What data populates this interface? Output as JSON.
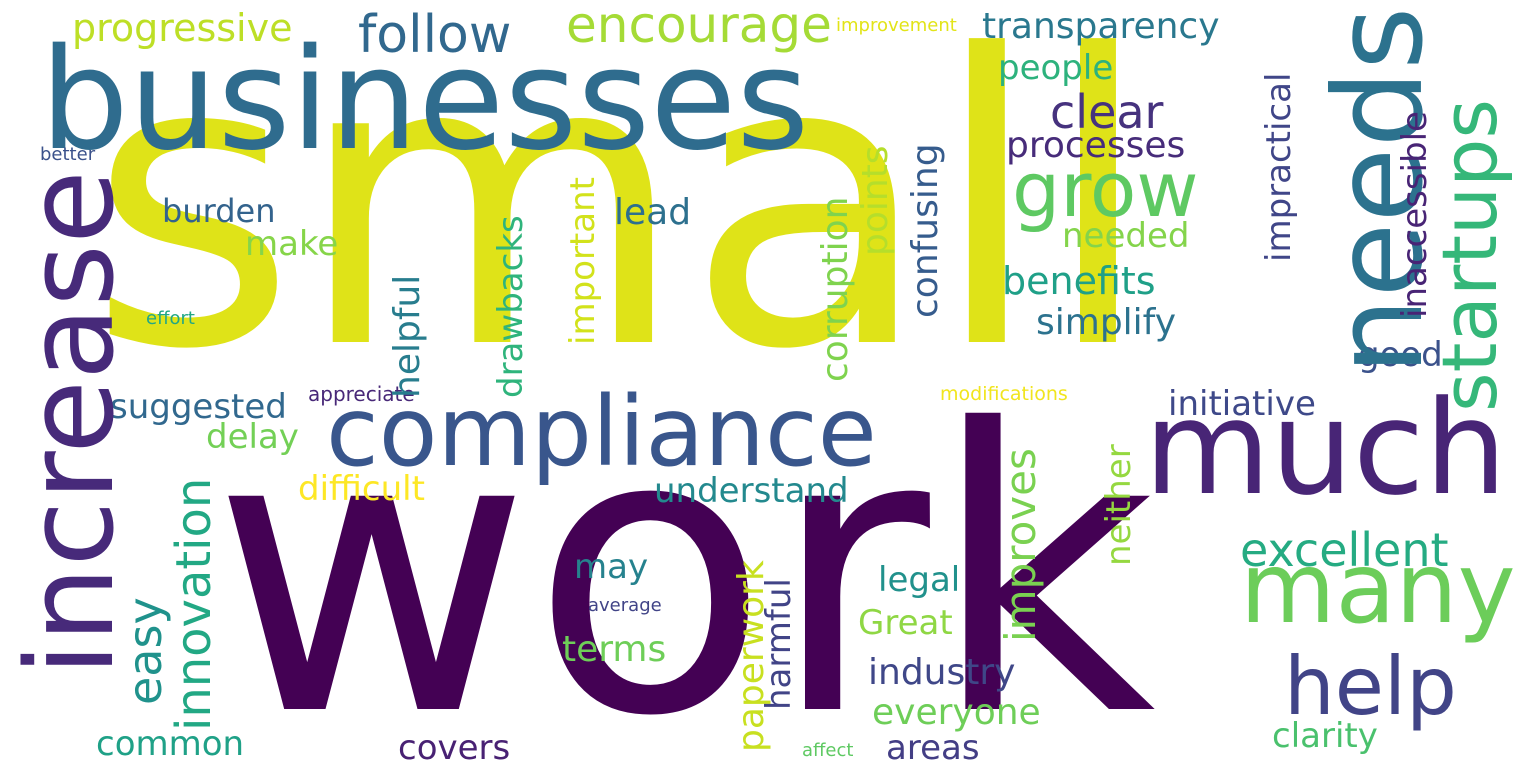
{
  "words": [
    {
      "text": "small",
      "color": "#dfe318"
    },
    {
      "text": "work",
      "color": "#440154"
    },
    {
      "text": "businesses",
      "color": "#2f6c8e"
    },
    {
      "text": "increase",
      "color": "#472a7a"
    },
    {
      "text": "compliance",
      "color": "#39568c"
    },
    {
      "text": "much",
      "color": "#482576"
    },
    {
      "text": "needs",
      "color": "#2c728e"
    },
    {
      "text": "many",
      "color": "#6ccd5a"
    },
    {
      "text": "startups",
      "color": "#35b779"
    },
    {
      "text": "grow",
      "color": "#5ec962"
    },
    {
      "text": "help",
      "color": "#414487"
    },
    {
      "text": "encourage",
      "color": "#a5db36"
    },
    {
      "text": "follow",
      "color": "#31688e"
    },
    {
      "text": "progressive",
      "color": "#bddf26"
    },
    {
      "text": "transparency",
      "color": "#2a788e"
    },
    {
      "text": "people",
      "color": "#2db27d"
    },
    {
      "text": "clear",
      "color": "#46327e"
    },
    {
      "text": "processes",
      "color": "#472c7a"
    },
    {
      "text": "excellent",
      "color": "#25ab82"
    },
    {
      "text": "easy",
      "color": "#20928c"
    },
    {
      "text": "innovation",
      "color": "#22a884"
    },
    {
      "text": "burden",
      "color": "#33638d"
    },
    {
      "text": "make",
      "color": "#86d549"
    },
    {
      "text": "lead",
      "color": "#2d708e"
    },
    {
      "text": "needed",
      "color": "#84d44b"
    },
    {
      "text": "benefits",
      "color": "#1fa088"
    },
    {
      "text": "simplify",
      "color": "#2c728e"
    },
    {
      "text": "good",
      "color": "#3b528b"
    },
    {
      "text": "initiative",
      "color": "#3e4989"
    },
    {
      "text": "improves",
      "color": "#7ad151"
    },
    {
      "text": "understand",
      "color": "#23898e"
    },
    {
      "text": "difficult",
      "color": "#fde725"
    },
    {
      "text": "delay",
      "color": "#73d056"
    },
    {
      "text": "suggested",
      "color": "#31688e"
    },
    {
      "text": "appreciate",
      "color": "#482878"
    },
    {
      "text": "modifications",
      "color": "#f1e51d"
    },
    {
      "text": "better",
      "color": "#3b528b"
    },
    {
      "text": "effort",
      "color": "#22a785"
    },
    {
      "text": "improvement",
      "color": "#e2e418"
    },
    {
      "text": "may",
      "color": "#26828e"
    },
    {
      "text": "legal",
      "color": "#21918c"
    },
    {
      "text": "Great",
      "color": "#8fd744"
    },
    {
      "text": "terms",
      "color": "#6ece58"
    },
    {
      "text": "industry",
      "color": "#3f4788"
    },
    {
      "text": "everyone",
      "color": "#6ece58"
    },
    {
      "text": "common",
      "color": "#1fa187"
    },
    {
      "text": "covers",
      "color": "#482173"
    },
    {
      "text": "areas",
      "color": "#433e85"
    },
    {
      "text": "clarity",
      "color": "#4ac16d"
    },
    {
      "text": "average",
      "color": "#414487"
    },
    {
      "text": "affect",
      "color": "#5ec962"
    },
    {
      "text": "helpful",
      "color": "#287d8e"
    },
    {
      "text": "drawbacks",
      "color": "#2fb47c"
    },
    {
      "text": "important",
      "color": "#d2e21b"
    },
    {
      "text": "corruption",
      "color": "#7fd34e"
    },
    {
      "text": "points",
      "color": "#b5de2b"
    },
    {
      "text": "confusing",
      "color": "#365c8d"
    },
    {
      "text": "paperwork",
      "color": "#c8e020"
    },
    {
      "text": "harmful",
      "color": "#414487"
    },
    {
      "text": "neither",
      "color": "#95d840"
    },
    {
      "text": "impractical",
      "color": "#404688"
    },
    {
      "text": "inaccessible",
      "color": "#482475"
    }
  ]
}
